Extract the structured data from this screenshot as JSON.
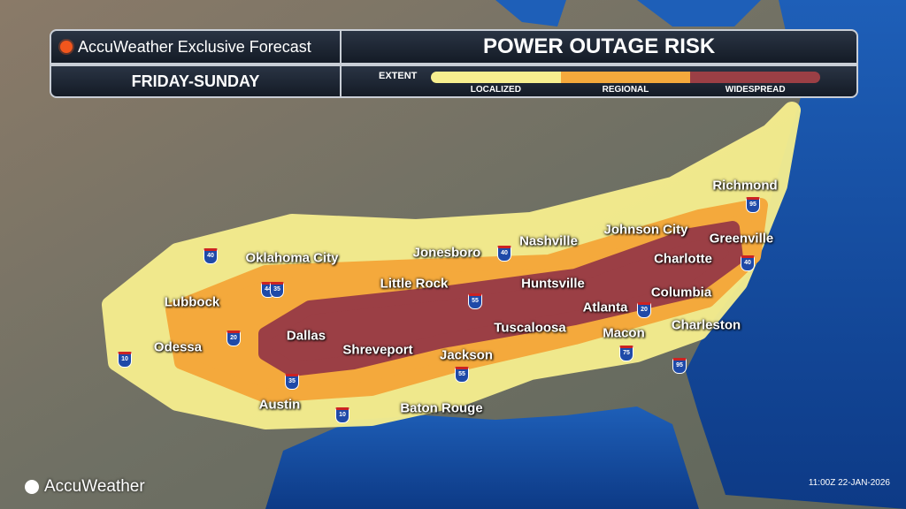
{
  "header": {
    "brand_title": "AccuWeather Exclusive Forecast",
    "period": "FRIDAY-SUNDAY",
    "title": "POWER OUTAGE RISK",
    "legend_label": "EXTENT",
    "legend": [
      {
        "label": "LOCALIZED",
        "color": "#f7ef8f"
      },
      {
        "label": "REGIONAL",
        "color": "#f4a93c"
      },
      {
        "label": "WIDESPREAD",
        "color": "#9b3f45"
      }
    ]
  },
  "cities": [
    "Richmond",
    "Greenville",
    "Johnson City",
    "Nashville",
    "Jonesboro",
    "Oklahoma City",
    "Charlotte",
    "Huntsville",
    "Little Rock",
    "Lubbock",
    "Columbia",
    "Atlanta",
    "Dallas",
    "Tuscaloosa",
    "Macon",
    "Charleston",
    "Odessa",
    "Shreveport",
    "Jackson",
    "Austin",
    "Baton Rouge"
  ],
  "interstates": [
    "40",
    "44",
    "35",
    "40",
    "55",
    "20",
    "10",
    "35",
    "55",
    "10",
    "20",
    "75",
    "95",
    "40",
    "95"
  ],
  "footer": {
    "logo": "AccuWeather",
    "timestamp": "11:00Z 22-JAN-2026"
  }
}
